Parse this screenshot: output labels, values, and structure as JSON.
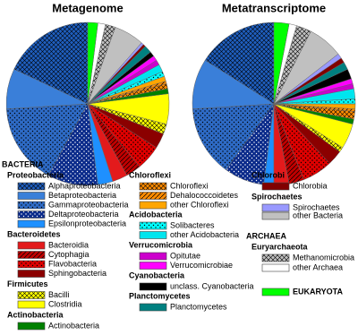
{
  "chart_data": {
    "type": "pie",
    "series": [
      {
        "name": "Metagenome",
        "values": [
          18,
          8,
          16,
          10,
          3,
          3,
          3,
          5,
          3,
          2,
          6,
          1,
          1,
          0.5,
          1,
          1,
          1.5,
          1,
          1,
          1,
          1.5,
          0.5,
          0.5,
          6,
          2,
          1.5,
          2
        ]
      },
      {
        "name": "Metatranscriptome",
        "values": [
          16,
          10,
          14,
          8,
          2,
          3,
          3,
          6,
          3,
          1,
          5,
          1,
          1.5,
          0.5,
          1,
          1,
          2,
          1,
          1,
          2,
          1.5,
          1,
          1,
          7,
          3,
          1.5,
          3
        ]
      }
    ],
    "domains": [
      {
        "name": "BACTERIA",
        "groups": [
          {
            "name": "Proteobacteria",
            "items": [
              {
                "name": "Alphaproteobacteria",
                "color": "#1f5fbf",
                "pattern": "crosshatch"
              },
              {
                "name": "Betaproteobacteria",
                "color": "#3a7fd9",
                "pattern": null
              },
              {
                "name": "Gammaproteobacteria",
                "color": "#2e6bc6",
                "pattern": "dots"
              },
              {
                "name": "Deltaproteobacteria",
                "color": "#0a2a8a",
                "pattern": "dots"
              },
              {
                "name": "Epsilonproteobacteria",
                "color": "#1e90ff",
                "pattern": null
              }
            ]
          },
          {
            "name": "Bacteroidetes",
            "items": [
              {
                "name": "Bacteroidia",
                "color": "#e31a1c",
                "pattern": null
              },
              {
                "name": "Cytophagia",
                "color": "#c00000",
                "pattern": "diagonal"
              },
              {
                "name": "Flavobacteria",
                "color": "#e00000",
                "pattern": "dots"
              },
              {
                "name": "Sphingobacteria",
                "color": "#8b0000",
                "pattern": null
              }
            ]
          },
          {
            "name": "Firmicutes",
            "items": [
              {
                "name": "Bacilli",
                "color": "#ffff00",
                "pattern": "crosshatch"
              },
              {
                "name": "Clostridia",
                "color": "#ffff00",
                "pattern": null
              }
            ]
          },
          {
            "name": "Actinobacteria",
            "items": [
              {
                "name": "Actinobacteria",
                "color": "#008000",
                "pattern": null
              }
            ]
          },
          {
            "name": "Chloroflexi",
            "items": [
              {
                "name": "Chloroflexi",
                "color": "#ff8c00",
                "pattern": "crosshatch"
              },
              {
                "name": "Dehalococcoidetes",
                "color": "#ff8c00",
                "pattern": "diagonal"
              },
              {
                "name": "other Chloroflexi",
                "color": "#ffa500",
                "pattern": null
              }
            ]
          },
          {
            "name": "Acidobacteria",
            "items": [
              {
                "name": "Solibacteres",
                "color": "#00ffff",
                "pattern": "dots"
              },
              {
                "name": "other Acidobacteria",
                "color": "#00e5ee",
                "pattern": null
              }
            ]
          },
          {
            "name": "Verrucomicrobia",
            "items": [
              {
                "name": "Opitutae",
                "color": "#cc00cc",
                "pattern": null
              },
              {
                "name": "Verrucomicrobiae",
                "color": "#ff00ff",
                "pattern": null
              }
            ]
          },
          {
            "name": "Cyanobacteria",
            "items": [
              {
                "name": "unclass. Cyanobacteria",
                "color": "#000000",
                "pattern": null
              }
            ]
          },
          {
            "name": "Planctomycetes",
            "items": [
              {
                "name": "Planctomycetes",
                "color": "#008080",
                "pattern": null
              }
            ]
          },
          {
            "name": "Chlorobi",
            "items": [
              {
                "name": "Chlorobia",
                "color": "#800000",
                "pattern": null
              }
            ]
          },
          {
            "name": "Spirochaetes",
            "items": [
              {
                "name": "Spirochaetes",
                "color": "#9999ff",
                "pattern": null
              }
            ]
          },
          {
            "items": [
              {
                "name": "other Bacteria",
                "color": "#c0c0c0",
                "pattern": null
              }
            ]
          }
        ]
      },
      {
        "name": "ARCHAEA",
        "groups": [
          {
            "name": "Euryarchaeota",
            "items": [
              {
                "name": "Methanomicrobia",
                "color": "#c0c0c0",
                "pattern": "crosshatch"
              }
            ]
          },
          {
            "items": [
              {
                "name": "other Archaea",
                "color": "#ffffff",
                "pattern": null
              }
            ]
          }
        ]
      },
      {
        "groups": [
          {
            "items": [
              {
                "name": "EUKARYOTA",
                "color": "#00ff00",
                "pattern": null
              }
            ]
          }
        ]
      }
    ]
  }
}
